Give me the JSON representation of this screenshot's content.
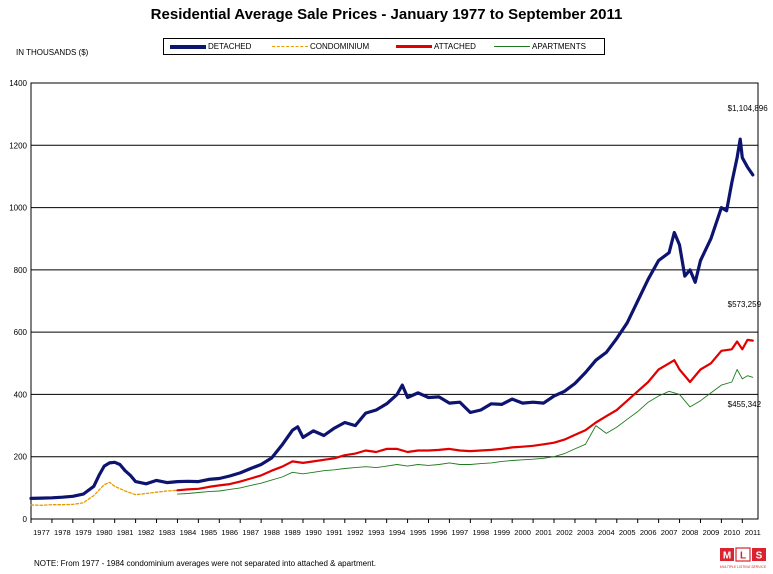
{
  "chart_data": {
    "type": "line",
    "title": "Residential Average Sale Prices  -  January 1977 to September 2011",
    "ylabel": "IN THOUSANDS ($)",
    "xlabel": "",
    "ylim": [
      0,
      1400
    ],
    "xlim": [
      1977,
      2011.75
    ],
    "yticks": [
      0,
      200,
      400,
      600,
      800,
      1000,
      1200,
      1400
    ],
    "xticks": [
      1977,
      1978,
      1979,
      1980,
      1981,
      1982,
      1983,
      1984,
      1985,
      1986,
      1987,
      1988,
      1989,
      1990,
      1991,
      1992,
      1993,
      1994,
      1995,
      1996,
      1997,
      1998,
      1999,
      2000,
      2001,
      2002,
      2003,
      2004,
      2005,
      2006,
      2007,
      2008,
      2009,
      2010,
      2011
    ],
    "grid": "horizontal",
    "legend_position": "top",
    "series": [
      {
        "name": "DETACHED",
        "color": "#0d1470",
        "style": "thick",
        "points": [
          [
            1977,
            66
          ],
          [
            1977.5,
            67
          ],
          [
            1978,
            68
          ],
          [
            1978.5,
            70
          ],
          [
            1979,
            73
          ],
          [
            1979.5,
            80
          ],
          [
            1980,
            105
          ],
          [
            1980.25,
            140
          ],
          [
            1980.5,
            170
          ],
          [
            1980.75,
            180
          ],
          [
            1981,
            182
          ],
          [
            1981.25,
            175
          ],
          [
            1981.5,
            155
          ],
          [
            1981.75,
            140
          ],
          [
            1982,
            120
          ],
          [
            1982.5,
            113
          ],
          [
            1983,
            124
          ],
          [
            1983.5,
            117
          ],
          [
            1984,
            120
          ],
          [
            1984.5,
            121
          ],
          [
            1985,
            120
          ],
          [
            1985.5,
            127
          ],
          [
            1986,
            130
          ],
          [
            1986.5,
            138
          ],
          [
            1987,
            148
          ],
          [
            1987.5,
            162
          ],
          [
            1988,
            175
          ],
          [
            1988.5,
            196
          ],
          [
            1989,
            238
          ],
          [
            1989.5,
            285
          ],
          [
            1989.75,
            296
          ],
          [
            1990,
            262
          ],
          [
            1990.5,
            283
          ],
          [
            1991,
            268
          ],
          [
            1991.5,
            292
          ],
          [
            1992,
            310
          ],
          [
            1992.5,
            300
          ],
          [
            1993,
            340
          ],
          [
            1993.5,
            350
          ],
          [
            1994,
            370
          ],
          [
            1994.5,
            400
          ],
          [
            1994.75,
            430
          ],
          [
            1995,
            390
          ],
          [
            1995.5,
            405
          ],
          [
            1996,
            390
          ],
          [
            1996.5,
            392
          ],
          [
            1997,
            372
          ],
          [
            1997.5,
            375
          ],
          [
            1998,
            342
          ],
          [
            1998.5,
            350
          ],
          [
            1999,
            370
          ],
          [
            1999.5,
            368
          ],
          [
            2000,
            385
          ],
          [
            2000.5,
            372
          ],
          [
            2001,
            375
          ],
          [
            2001.5,
            372
          ],
          [
            2002,
            395
          ],
          [
            2002.5,
            410
          ],
          [
            2003,
            435
          ],
          [
            2003.5,
            470
          ],
          [
            2004,
            510
          ],
          [
            2004.5,
            535
          ],
          [
            2005,
            580
          ],
          [
            2005.5,
            630
          ],
          [
            2006,
            700
          ],
          [
            2006.5,
            770
          ],
          [
            2007,
            830
          ],
          [
            2007.5,
            855
          ],
          [
            2007.75,
            920
          ],
          [
            2008,
            880
          ],
          [
            2008.25,
            780
          ],
          [
            2008.5,
            800
          ],
          [
            2008.75,
            760
          ],
          [
            2009,
            830
          ],
          [
            2009.5,
            900
          ],
          [
            2010,
            1000
          ],
          [
            2010.25,
            990
          ],
          [
            2010.5,
            1080
          ],
          [
            2010.75,
            1160
          ],
          [
            2010.9,
            1220
          ],
          [
            2011,
            1160
          ],
          [
            2011.25,
            1130
          ],
          [
            2011.5,
            1105
          ]
        ]
      },
      {
        "name": "CONDOMINIUM",
        "color": "#e69b00",
        "style": "dashed",
        "points": [
          [
            1977,
            45
          ],
          [
            1977.5,
            44
          ],
          [
            1978,
            46
          ],
          [
            1978.5,
            46
          ],
          [
            1979,
            47
          ],
          [
            1979.5,
            52
          ],
          [
            1980,
            75
          ],
          [
            1980.5,
            110
          ],
          [
            1980.75,
            118
          ],
          [
            1981,
            105
          ],
          [
            1981.5,
            90
          ],
          [
            1982,
            78
          ],
          [
            1982.5,
            82
          ],
          [
            1983,
            86
          ],
          [
            1983.5,
            90
          ],
          [
            1984,
            92
          ]
        ]
      },
      {
        "name": "ATTACHED",
        "color": "#e00000",
        "style": "medium",
        "points": [
          [
            1984,
            92
          ],
          [
            1984.5,
            95
          ],
          [
            1985,
            97
          ],
          [
            1985.5,
            103
          ],
          [
            1986,
            108
          ],
          [
            1986.5,
            112
          ],
          [
            1987,
            120
          ],
          [
            1987.5,
            130
          ],
          [
            1988,
            140
          ],
          [
            1988.5,
            155
          ],
          [
            1989,
            168
          ],
          [
            1989.5,
            185
          ],
          [
            1990,
            180
          ],
          [
            1990.5,
            185
          ],
          [
            1991,
            190
          ],
          [
            1991.5,
            195
          ],
          [
            1992,
            205
          ],
          [
            1992.5,
            210
          ],
          [
            1993,
            220
          ],
          [
            1993.5,
            215
          ],
          [
            1994,
            225
          ],
          [
            1994.5,
            225
          ],
          [
            1995,
            215
          ],
          [
            1995.5,
            220
          ],
          [
            1996,
            220
          ],
          [
            1996.5,
            222
          ],
          [
            1997,
            225
          ],
          [
            1997.5,
            220
          ],
          [
            1998,
            218
          ],
          [
            1998.5,
            220
          ],
          [
            1999,
            222
          ],
          [
            1999.5,
            225
          ],
          [
            2000,
            230
          ],
          [
            2000.5,
            232
          ],
          [
            2001,
            235
          ],
          [
            2001.5,
            240
          ],
          [
            2002,
            245
          ],
          [
            2002.5,
            255
          ],
          [
            2003,
            270
          ],
          [
            2003.5,
            285
          ],
          [
            2004,
            310
          ],
          [
            2004.5,
            330
          ],
          [
            2005,
            350
          ],
          [
            2005.5,
            380
          ],
          [
            2006,
            410
          ],
          [
            2006.5,
            440
          ],
          [
            2007,
            480
          ],
          [
            2007.5,
            500
          ],
          [
            2007.75,
            510
          ],
          [
            2008,
            480
          ],
          [
            2008.5,
            440
          ],
          [
            2009,
            480
          ],
          [
            2009.5,
            500
          ],
          [
            2010,
            540
          ],
          [
            2010.5,
            545
          ],
          [
            2010.75,
            570
          ],
          [
            2011,
            545
          ],
          [
            2011.25,
            575
          ],
          [
            2011.5,
            573
          ]
        ]
      },
      {
        "name": "APARTMENTS",
        "color": "#1e7a1e",
        "style": "thin",
        "points": [
          [
            1984,
            80
          ],
          [
            1984.5,
            82
          ],
          [
            1985,
            85
          ],
          [
            1985.5,
            88
          ],
          [
            1986,
            90
          ],
          [
            1986.5,
            95
          ],
          [
            1987,
            100
          ],
          [
            1987.5,
            108
          ],
          [
            1988,
            115
          ],
          [
            1988.5,
            125
          ],
          [
            1989,
            135
          ],
          [
            1989.5,
            150
          ],
          [
            1990,
            145
          ],
          [
            1990.5,
            150
          ],
          [
            1991,
            155
          ],
          [
            1991.5,
            158
          ],
          [
            1992,
            162
          ],
          [
            1992.5,
            165
          ],
          [
            1993,
            168
          ],
          [
            1993.5,
            165
          ],
          [
            1994,
            170
          ],
          [
            1994.5,
            175
          ],
          [
            1995,
            170
          ],
          [
            1995.5,
            175
          ],
          [
            1996,
            172
          ],
          [
            1996.5,
            175
          ],
          [
            1997,
            180
          ],
          [
            1997.5,
            175
          ],
          [
            1998,
            175
          ],
          [
            1998.5,
            178
          ],
          [
            1999,
            180
          ],
          [
            1999.5,
            185
          ],
          [
            2000,
            188
          ],
          [
            2000.5,
            190
          ],
          [
            2001,
            192
          ],
          [
            2001.5,
            195
          ],
          [
            2002,
            200
          ],
          [
            2002.5,
            210
          ],
          [
            2003,
            225
          ],
          [
            2003.5,
            240
          ],
          [
            2004,
            300
          ],
          [
            2004.5,
            275
          ],
          [
            2005,
            295
          ],
          [
            2005.5,
            320
          ],
          [
            2006,
            345
          ],
          [
            2006.5,
            375
          ],
          [
            2007,
            395
          ],
          [
            2007.5,
            410
          ],
          [
            2008,
            400
          ],
          [
            2008.5,
            360
          ],
          [
            2009,
            380
          ],
          [
            2009.5,
            405
          ],
          [
            2010,
            430
          ],
          [
            2010.5,
            440
          ],
          [
            2010.75,
            480
          ],
          [
            2011,
            450
          ],
          [
            2011.25,
            460
          ],
          [
            2011.5,
            455
          ]
        ]
      }
    ],
    "annotations": [
      {
        "text": "$1,104,896",
        "x": 2010.3,
        "y": 1310
      },
      {
        "text": "$573,259",
        "x": 2010.3,
        "y": 680
      },
      {
        "text": "$455,342",
        "x": 2010.3,
        "y": 360
      }
    ]
  },
  "note": "NOTE:  From 1977 - 1984 condominium averages were not separated into attached & apartment.",
  "logo": {
    "text": "MLS",
    "sub": "MULTIPLE LISTING SERVICE",
    "color": "#d9232e"
  }
}
